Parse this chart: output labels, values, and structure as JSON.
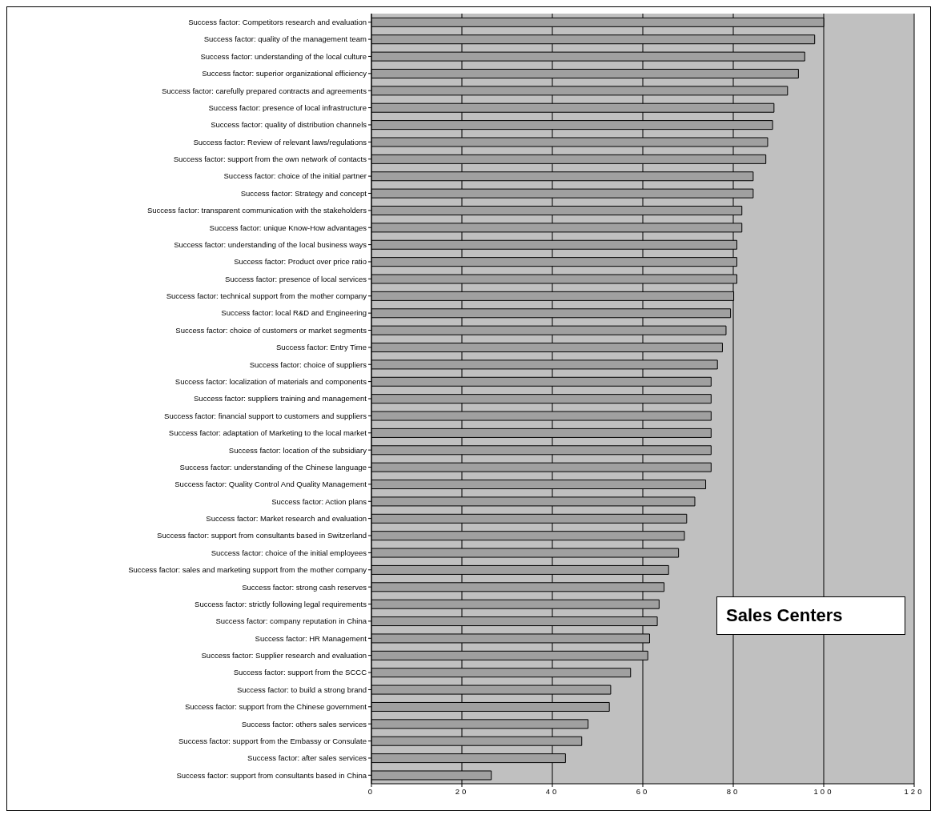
{
  "chart_data": {
    "type": "bar",
    "orientation": "horizontal",
    "categories": [
      "Success factor: Competitors research and evaluation",
      "Success factor: quality of the management team",
      "Success factor: understanding of the local culture",
      "Success factor: superior organizational efficiency",
      "Success factor: carefully prepared contracts and agreements",
      "Success factor: presence of local infrastructure",
      "Success factor: quality of distribution channels",
      "Success factor: Review of relevant laws/regulations",
      "Success factor: support from the own network of contacts",
      "Success factor: choice of the initial partner",
      "Success factor: Strategy and concept",
      "Success factor: transparent communication with the stakeholders",
      "Success factor: unique Know-How advantages",
      "Success factor: understanding of the local business ways",
      "Success factor: Product over price ratio",
      "Success factor: presence of local services",
      "Success factor: technical support from the mother company",
      "Success factor: local R&D and Engineering",
      "Success factor: choice of customers or market segments",
      "Success factor: Entry Time",
      "Success factor: choice of suppliers",
      "Success factor: localization of materials and components",
      "Success factor: suppliers training and management",
      "Success factor: financial support to customers and suppliers",
      "Success factor: adaptation of Marketing to the local market",
      "Success factor: location of the subsidiary",
      "Success factor: understanding of the Chinese language",
      "Success factor: Quality Control And Quality Management",
      "Success factor: Action plans",
      "Success factor: Market research and evaluation",
      "Success factor: support from consultants based in Switzerland",
      "Success factor: choice of the initial employees",
      "Success factor: sales and marketing support from the mother company",
      "Success factor: strong cash reserves",
      "Success factor: strictly following legal requirements",
      "Success factor: company reputation in China",
      "Success factor: HR Management",
      "Success factor: Supplier research and evaluation",
      "Success factor: support from the SCCC",
      "Success factor: to build a strong brand",
      "Success factor: support from the Chinese government",
      "Success factor: others sales services",
      "Success factor: support from the Embassy or Consulate",
      "Success factor: after sales services",
      "Success factor: support from consultants based in China"
    ],
    "values": [
      100,
      98.0,
      95.8,
      94.4,
      92.0,
      89.0,
      88.7,
      87.6,
      87.2,
      84.4,
      84.4,
      81.9,
      81.9,
      80.8,
      80.8,
      80.8,
      80.1,
      79.4,
      78.4,
      77.6,
      76.5,
      75.1,
      75.1,
      75.1,
      75.1,
      75.1,
      75.1,
      73.9,
      71.5,
      69.7,
      69.2,
      67.9,
      65.7,
      64.7,
      63.6,
      63.2,
      61.5,
      61.1,
      57.3,
      52.9,
      52.6,
      47.9,
      46.5,
      42.9,
      26.5
    ],
    "color": "#a0a0a0",
    "xlim": [
      0,
      120
    ],
    "xticks": [
      0,
      20,
      40,
      60,
      80,
      100,
      120
    ],
    "grid": "x",
    "annotations": [
      "Sales Centers"
    ]
  }
}
